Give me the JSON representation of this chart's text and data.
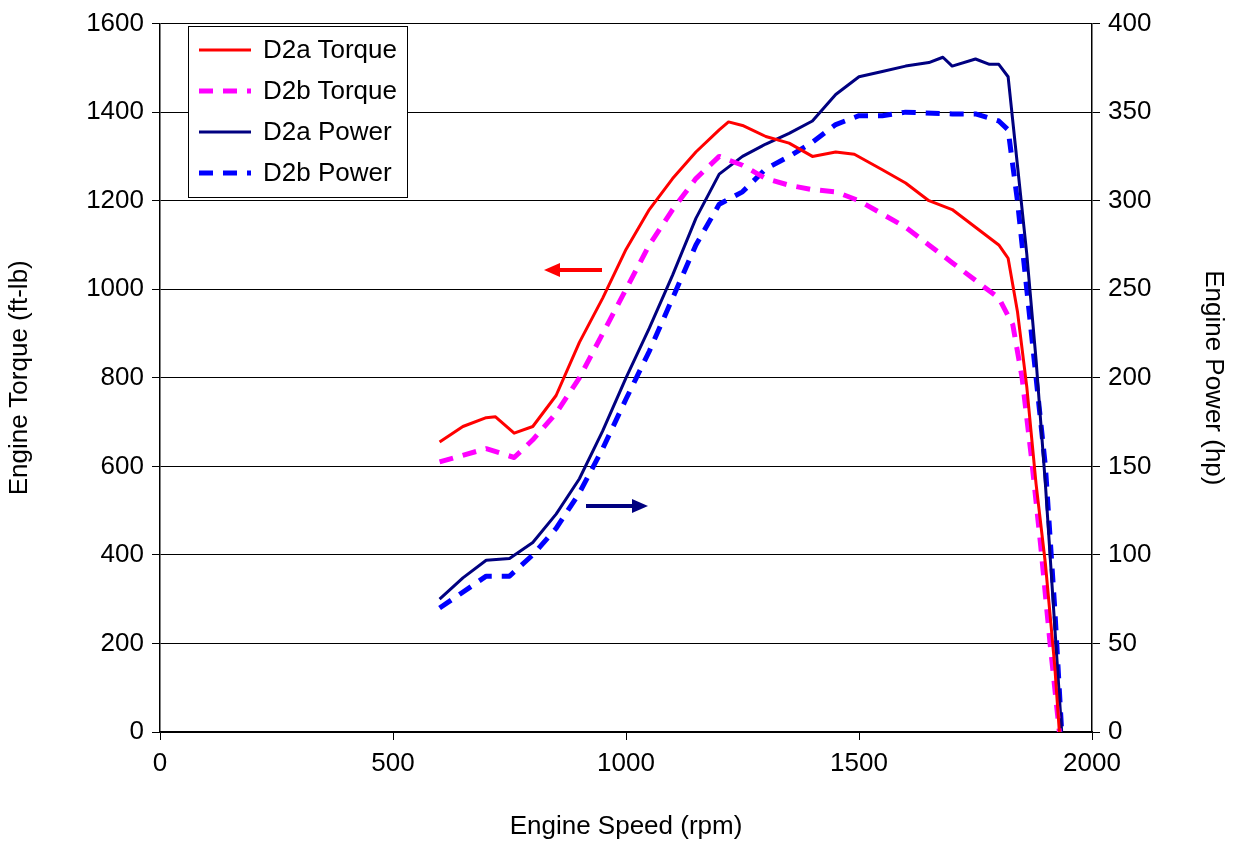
{
  "chart_data": {
    "type": "line",
    "xlabel": "Engine Speed (rpm)",
    "ylabel": "Engine Torque (ft-lb)",
    "y2label": "Engine Power (hp)",
    "xlim": [
      0,
      2000
    ],
    "xticks": [
      0,
      500,
      1000,
      1500,
      2000
    ],
    "ylim": [
      0,
      1600
    ],
    "yticks": [
      0,
      200,
      400,
      600,
      800,
      1000,
      1200,
      1400,
      1600
    ],
    "y2lim": [
      0,
      400
    ],
    "y2ticks": [
      0,
      50,
      100,
      150,
      200,
      250,
      300,
      350,
      400
    ],
    "grid": "y",
    "legend": "top left",
    "marker": "none",
    "series": [
      {
        "name": "D2a Torque",
        "color": "#ff0000",
        "line_style": "solid",
        "x": [
          600,
          650,
          700,
          720,
          760,
          800,
          850,
          900,
          950,
          1000,
          1050,
          1100,
          1150,
          1200,
          1220,
          1250,
          1300,
          1350,
          1400,
          1450,
          1490,
          1550,
          1600,
          1650,
          1700,
          1750,
          1800,
          1820,
          1840,
          1860,
          1880,
          1900,
          1920,
          1930
        ],
        "values": [
          655,
          690,
          710,
          712,
          675,
          690,
          760,
          880,
          980,
          1090,
          1180,
          1250,
          1310,
          1360,
          1378,
          1370,
          1345,
          1330,
          1300,
          1310,
          1305,
          1270,
          1240,
          1200,
          1180,
          1140,
          1100,
          1070,
          950,
          780,
          560,
          380,
          150,
          0
        ]
      },
      {
        "name": "D2b Torque",
        "color": "#ff00ff",
        "line_style": "dashed",
        "x": [
          600,
          700,
          760,
          800,
          850,
          900,
          950,
          1000,
          1050,
          1100,
          1150,
          1200,
          1250,
          1300,
          1350,
          1400,
          1450,
          1500,
          1550,
          1600,
          1650,
          1700,
          1750,
          1800,
          1830,
          1850,
          1870,
          1890,
          1910,
          1930
        ],
        "values": [
          610,
          640,
          620,
          660,
          720,
          800,
          900,
          1000,
          1100,
          1180,
          1250,
          1300,
          1280,
          1250,
          1235,
          1225,
          1220,
          1200,
          1170,
          1140,
          1100,
          1060,
          1020,
          980,
          920,
          800,
          620,
          420,
          200,
          0
        ]
      },
      {
        "name": "D2a Power",
        "color": "#000080",
        "line_style": "solid",
        "axis": "y2",
        "x": [
          600,
          650,
          700,
          750,
          800,
          850,
          900,
          950,
          1000,
          1050,
          1100,
          1150,
          1200,
          1250,
          1300,
          1350,
          1400,
          1450,
          1500,
          1550,
          1600,
          1650,
          1680,
          1700,
          1750,
          1780,
          1800,
          1820,
          1840,
          1860,
          1880,
          1900,
          1920,
          1935
        ],
        "values": [
          75,
          87,
          97,
          98,
          107,
          123,
          143,
          170,
          200,
          228,
          258,
          290,
          315,
          325,
          332,
          338,
          345,
          360,
          370,
          373,
          376,
          378,
          381,
          376,
          380,
          377,
          377,
          370,
          320,
          270,
          210,
          140,
          60,
          0
        ]
      },
      {
        "name": "D2b Power",
        "color": "#0000ff",
        "line_style": "dashed",
        "axis": "y2",
        "x": [
          600,
          700,
          750,
          800,
          850,
          900,
          950,
          1000,
          1050,
          1100,
          1150,
          1200,
          1250,
          1300,
          1350,
          1400,
          1450,
          1500,
          1550,
          1600,
          1700,
          1750,
          1800,
          1820,
          1840,
          1860,
          1880,
          1900,
          1920,
          1935
        ],
        "values": [
          70,
          88,
          88,
          100,
          115,
          135,
          160,
          188,
          215,
          245,
          275,
          298,
          305,
          318,
          325,
          333,
          343,
          348,
          348,
          350,
          349,
          349,
          345,
          340,
          300,
          250,
          200,
          150,
          70,
          0
        ]
      }
    ]
  }
}
